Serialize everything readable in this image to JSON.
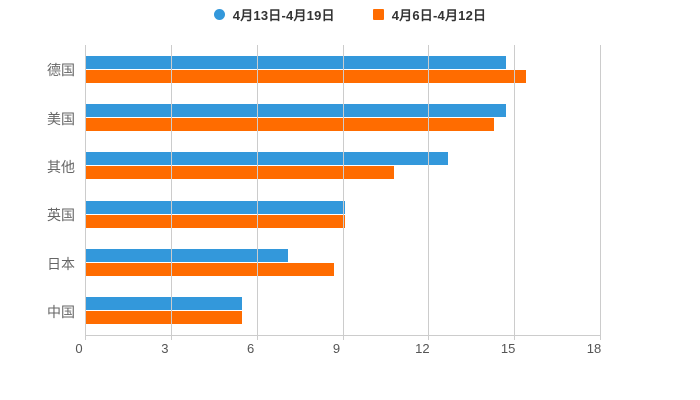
{
  "legend": {
    "items": [
      {
        "label": "4月13日-4月19日",
        "color": "#3398DB",
        "shape": "circle"
      },
      {
        "label": "4月6日-4月12日",
        "color": "#FF6C00",
        "shape": "square"
      }
    ]
  },
  "chart_data": {
    "type": "bar",
    "orientation": "horizontal",
    "title": "",
    "xlabel": "",
    "ylabel": "",
    "categories": [
      "德国",
      "美国",
      "其他",
      "英国",
      "日本",
      "中国"
    ],
    "series": [
      {
        "name": "4月13日-4月19日",
        "color": "#3398DB",
        "values": [
          14.7,
          14.7,
          12.7,
          9.1,
          7.1,
          5.5
        ]
      },
      {
        "name": "4月6日-4月12日",
        "color": "#FF6C00",
        "values": [
          15.4,
          14.3,
          10.8,
          9.1,
          8.7,
          5.5
        ]
      }
    ],
    "x_ticks": [
      "0",
      "3",
      "6",
      "9",
      "12",
      "15",
      "18"
    ],
    "x_tick_values": [
      0,
      3,
      6,
      9,
      12,
      15,
      18
    ],
    "xlim": [
      0,
      18
    ],
    "grid": true,
    "grid_color": "#cccccc",
    "axis_text_color": "#555555",
    "category_text_color": "#666666",
    "legend_position": "top",
    "background": "#ffffff"
  }
}
